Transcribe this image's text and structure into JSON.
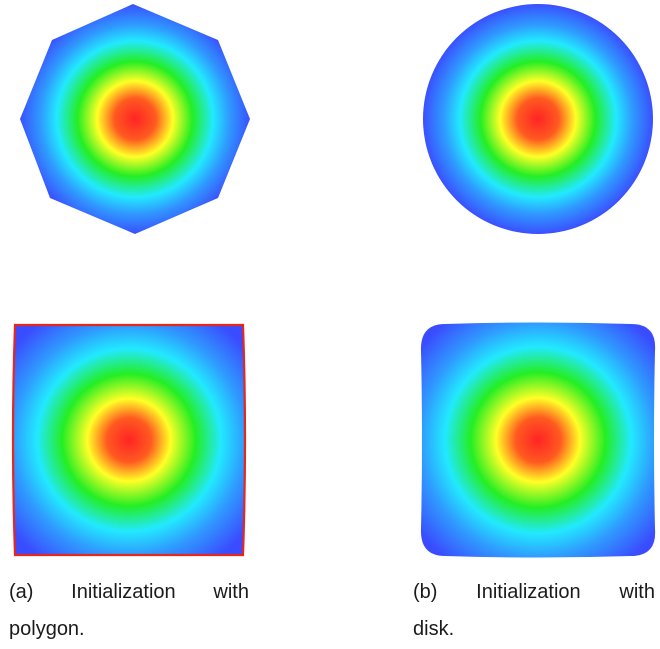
{
  "figure": {
    "colormap": [
      "#3355ff",
      "#22e9ff",
      "#22ee22",
      "#ffff22",
      "#ff2222"
    ],
    "subfigures": [
      {
        "label": "(a)",
        "caption_words": [
          "Initialization",
          "with"
        ],
        "caption_line2": "polygon.",
        "top_shape": "octagon",
        "bottom_shape": "square-with-red-outline"
      },
      {
        "label": "(b)",
        "caption_words": [
          "Initialization",
          "with"
        ],
        "caption_line2": "disk.",
        "top_shape": "disk",
        "bottom_shape": "rounded-square"
      }
    ]
  }
}
